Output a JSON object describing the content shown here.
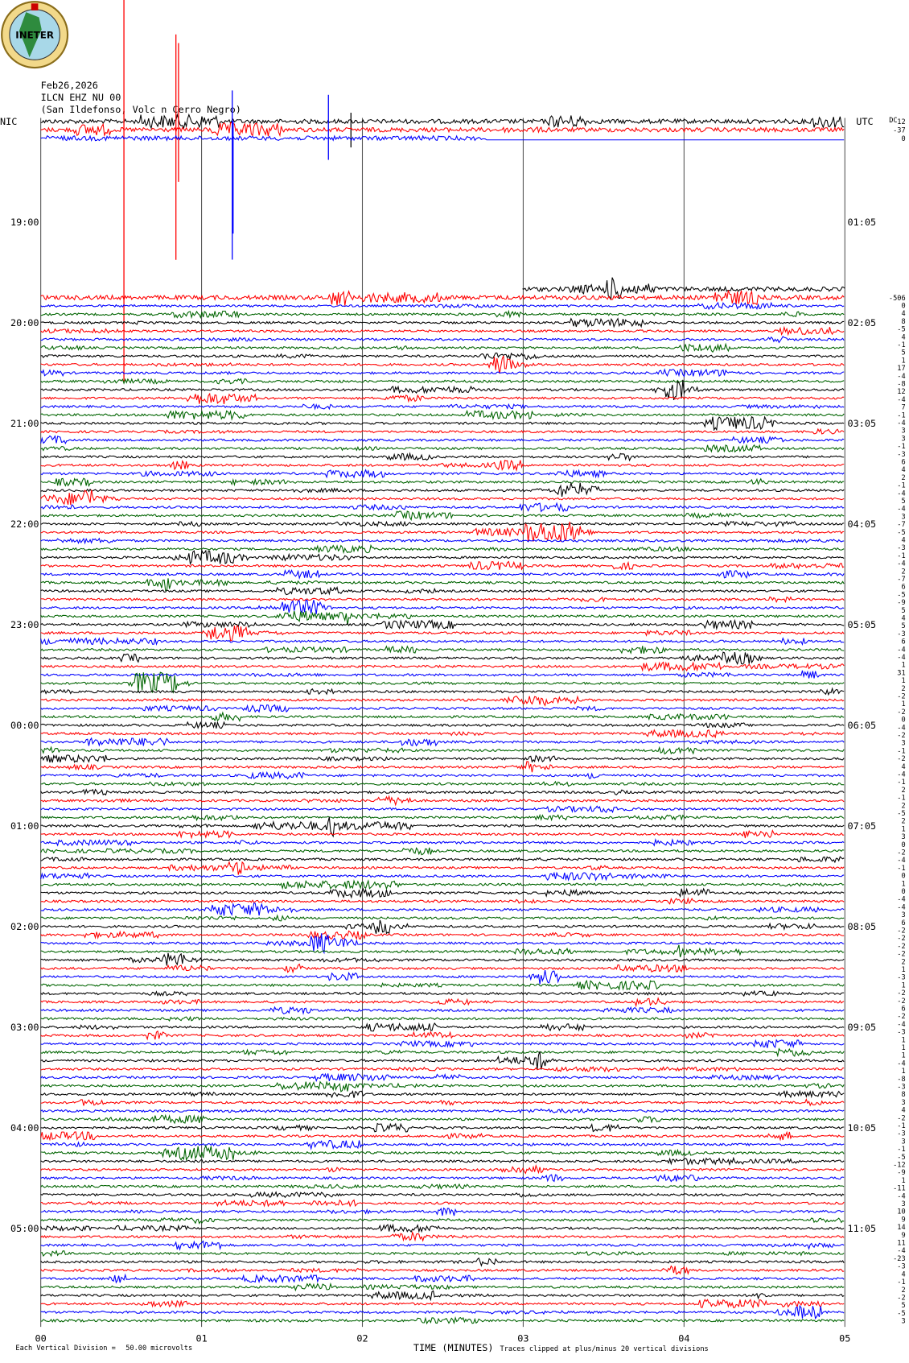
{
  "chart_data": {
    "type": "helicorder",
    "logo_text": "INETER",
    "date": "Feb26,2026",
    "station": "ILCN EHZ NU 00",
    "location": "(San Ildefonso, Volc n Cerro Negro)",
    "left_zone": "NIC",
    "right_zone": "UTC",
    "dc_label": "DC",
    "left_hours": [
      "19:00",
      "20:00",
      "21:00",
      "22:00",
      "23:00",
      "00:00",
      "01:00",
      "02:00",
      "03:00",
      "04:00",
      "05:00"
    ],
    "right_hours": [
      "01:05",
      "02:05",
      "03:05",
      "04:05",
      "05:05",
      "06:05",
      "07:05",
      "08:05",
      "09:05",
      "10:05",
      "11:05"
    ],
    "top_offsets": [
      12,
      -37,
      0
    ],
    "offsets": [
      -506,
      0,
      4,
      8,
      -5,
      4,
      -1,
      5,
      1,
      17,
      -4,
      -8,
      12,
      -4,
      7,
      -1,
      -4,
      3,
      3,
      -1,
      -3,
      6,
      4,
      2,
      -1,
      -4,
      5,
      -4,
      3,
      -7,
      -5,
      4,
      -3,
      -1,
      -4,
      2,
      -7,
      6,
      -5,
      -9,
      5,
      4,
      5,
      -3,
      6,
      -4,
      -4,
      1,
      31,
      1,
      2,
      -2,
      1,
      -2,
      0,
      -4,
      -2,
      3,
      -1,
      -2,
      4,
      -4,
      -1,
      2,
      -1,
      2,
      -5,
      2,
      1,
      3,
      0,
      -2,
      -4,
      -1,
      0,
      1,
      0,
      -4,
      -4,
      3,
      6,
      -2,
      -2,
      -2,
      -2,
      2,
      1,
      -3,
      1,
      -2,
      -2,
      6,
      -2,
      -4,
      -3,
      1,
      1,
      1,
      -4,
      1,
      -8,
      -3,
      8,
      3,
      4,
      -2,
      -1,
      -3,
      3,
      -1,
      -5,
      -12,
      -9,
      1,
      -11,
      -4,
      3,
      10,
      9,
      14,
      9,
      11,
      -4,
      -23,
      -3,
      4,
      -1,
      2,
      -2,
      5,
      -5,
      3
    ],
    "colors": [
      "#000000",
      "#ff0000",
      "#0000ff",
      "#006400"
    ],
    "xlim": [
      0,
      5
    ],
    "xticks": [
      {
        "value": 0,
        "label": "00"
      },
      {
        "value": 1,
        "label": "01"
      },
      {
        "value": 2,
        "label": "02"
      },
      {
        "value": 3,
        "label": "03"
      },
      {
        "value": 4,
        "label": "04"
      },
      {
        "value": 5,
        "label": "05"
      }
    ],
    "xlabel": "TIME (MINUTES)",
    "division_text": "Each Vertical Division =",
    "division_value": "50.00 microvolts",
    "clip_note": "Traces clipped at plus/minus 20 vertical divisions"
  }
}
